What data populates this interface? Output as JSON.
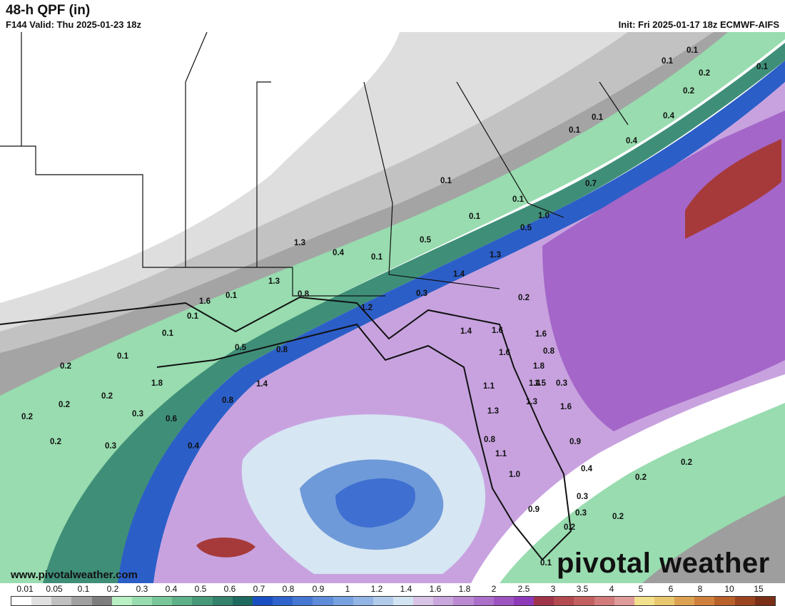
{
  "header": {
    "title": "48-h QPF (in)",
    "valid": "F144 Valid: Thu 2025-01-23 18z",
    "init": "Init: Fri 2025-01-17 18z ECMWF-AIFS"
  },
  "footer": {
    "website": "www.pivotalweather.com",
    "brand": "pivotal weather"
  },
  "colorbar": {
    "ticks": [
      "0.01",
      "0.05",
      "0.1",
      "0.2",
      "0.3",
      "0.4",
      "0.5",
      "0.6",
      "0.7",
      "0.8",
      "0.9",
      "1",
      "1.2",
      "1.4",
      "1.6",
      "1.8",
      "2",
      "2.5",
      "3",
      "3.5",
      "4",
      "5",
      "6",
      "8",
      "10",
      "15"
    ],
    "colors": [
      "#ffffff",
      "#e0e0e0",
      "#c0c0c0",
      "#a0a0a0",
      "#7e7e7e",
      "#b8f0c4",
      "#97dcae",
      "#78c69a",
      "#5eb089",
      "#47997a",
      "#34816c",
      "#1f6a5f",
      "#1a4fc3",
      "#2f63cc",
      "#4678d3",
      "#5e8cd9",
      "#77a1df",
      "#93b5e5",
      "#b1cbeb",
      "#d2e3f1",
      "#d8c4e6",
      "#c9a6dc",
      "#bb8ad3",
      "#ac6fca",
      "#9d54c1",
      "#8e3ab8",
      "#a0344a",
      "#b24a50",
      "#c26160",
      "#d17b7b",
      "#df9a9a",
      "#f2e08c",
      "#e8c76e",
      "#dca252",
      "#cf803d",
      "#b8612b",
      "#9a4520",
      "#7a2f16"
    ]
  },
  "map_labels": [
    "0.1",
    "0.1",
    "0.2",
    "0.2",
    "0.1",
    "0.1",
    "0.1",
    "0.4",
    "0.4",
    "0.7",
    "0.1",
    "0.1",
    "1.0",
    "0.1",
    "0.5",
    "1.3",
    "0.5",
    "1.3",
    "0.4",
    "1.4",
    "0.1",
    "0.2",
    "0.3",
    "1.3",
    "0.8",
    "1.2",
    "1.6",
    "0.1",
    "0.1",
    "0.1",
    "0.8",
    "1.4",
    "1.6",
    "1.6",
    "0.5",
    "0.8",
    "1.6",
    "1.8",
    "0.1",
    "1.5",
    "0.3",
    "1.1",
    "1.4",
    "1.4",
    "1.8",
    "1.3",
    "0.2",
    "0.2",
    "0.2",
    "0.3",
    "0.8",
    "1.3",
    "1.6",
    "0.2",
    "0.6",
    "0.3",
    "0.4",
    "0.8",
    "1.1",
    "0.9",
    "1.0",
    "0.4",
    "0.2",
    "0.2",
    "0.9",
    "0.3",
    "0.3",
    "0.2",
    "0.2",
    "0.2",
    "0.1"
  ],
  "legend_colors": {
    "gray_band": "#bdbdbd",
    "green_band": "#8fd6a6",
    "blue_band": "#2a55c8",
    "purple_band": "#b27ed0",
    "dark_red_maximum": "#a63a3a"
  }
}
